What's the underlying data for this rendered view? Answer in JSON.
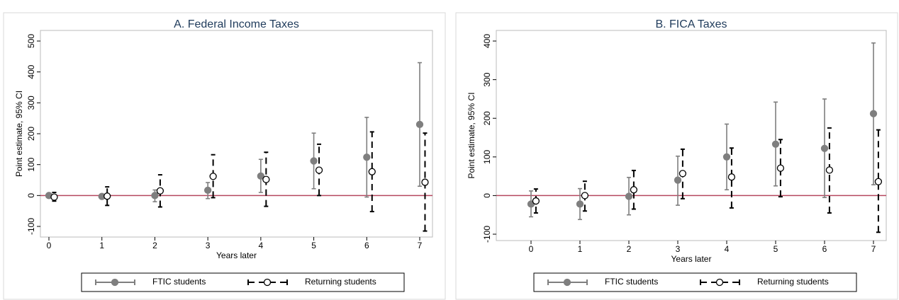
{
  "chart_data": [
    {
      "type": "errorbar",
      "title": "A. Federal Income Taxes",
      "xlabel": "Years later",
      "ylabel": "Point estimate, 95% CI",
      "x": [
        0,
        1,
        2,
        3,
        4,
        5,
        6,
        7
      ],
      "xlim": [
        0,
        7
      ],
      "xticks": [
        0,
        1,
        2,
        3,
        4,
        5,
        6,
        7
      ],
      "ylim": [
        -100,
        500
      ],
      "yticks": [
        -100,
        0,
        100,
        200,
        300,
        400,
        500
      ],
      "reference_line": 0,
      "reference_color": "#b5475f",
      "series": [
        {
          "name": "FTIC students",
          "color": "#7f7f7f",
          "values": [
            0,
            -3,
            0,
            17,
            63,
            112,
            124,
            230
          ],
          "lower": [
            -5,
            -8,
            -20,
            -10,
            10,
            22,
            -5,
            30
          ],
          "upper": [
            5,
            2,
            18,
            42,
            117,
            202,
            253,
            430
          ]
        },
        {
          "name": "Returning students",
          "color": "#000000",
          "values": [
            -5,
            -2,
            15,
            62,
            52,
            82,
            77,
            43
          ],
          "lower": [
            -18,
            -32,
            -37,
            -7,
            -35,
            0,
            -52,
            -115
          ],
          "upper": [
            10,
            28,
            67,
            132,
            140,
            166,
            206,
            202
          ]
        }
      ]
    },
    {
      "type": "errorbar",
      "title": "B. FICA Taxes",
      "xlabel": "Years later",
      "ylabel": "Point estimate, 95% CI",
      "x": [
        0,
        1,
        2,
        3,
        4,
        5,
        6,
        7
      ],
      "xlim": [
        0,
        7
      ],
      "xticks": [
        0,
        1,
        2,
        3,
        4,
        5,
        6,
        7
      ],
      "ylim": [
        -100,
        400
      ],
      "yticks": [
        -100,
        0,
        100,
        200,
        300,
        400
      ],
      "reference_line": 0,
      "reference_color": "#b5475f",
      "series": [
        {
          "name": "FTIC students",
          "color": "#7f7f7f",
          "values": [
            -22,
            -22,
            -2,
            40,
            100,
            133,
            122,
            212
          ],
          "lower": [
            -55,
            -62,
            -50,
            -25,
            15,
            25,
            -5,
            28
          ],
          "upper": [
            12,
            18,
            47,
            102,
            185,
            242,
            250,
            395
          ]
        },
        {
          "name": "Returning students",
          "color": "#000000",
          "values": [
            -14,
            0,
            15,
            57,
            48,
            71,
            66,
            36
          ],
          "lower": [
            -45,
            -40,
            -35,
            -8,
            -32,
            -3,
            -45,
            -95
          ],
          "upper": [
            17,
            37,
            65,
            120,
            123,
            145,
            175,
            170
          ]
        }
      ]
    }
  ]
}
